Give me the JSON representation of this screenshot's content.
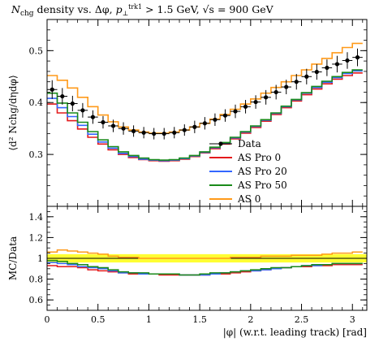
{
  "title": {
    "prefix": "N",
    "prefix_sub": "chg",
    "middle": " density vs. Δφ, ",
    "p": "p",
    "p_sub": "⊥",
    "p_sup": "trk1",
    "cut": " > 1.5 GeV, ",
    "sqrt_s": "√s",
    "energy": " = 900 GeV"
  },
  "ylabel_main": "⟨d² Nchg/dηdφ⟩",
  "ylabel_ratio": "MC/Data",
  "xlabel": "|φ| (w.r.t. leading track) [rad]",
  "colors": {
    "data": "#000000",
    "as_pro_0": "#e41a1c",
    "as_pro_20": "#3366ff",
    "as_pro_50": "#1a8a1a",
    "as_0": "#ff9a1a",
    "band": "#ffff33"
  },
  "chart_data": [
    {
      "type": "line",
      "role": "main",
      "xlim": [
        0,
        3.1416
      ],
      "ylim": [
        0.2,
        0.56
      ],
      "x_ticks": [
        0,
        0.5,
        1,
        1.5,
        2,
        2.5,
        3
      ],
      "x_tick_labels": [
        "0",
        "0.5",
        "1",
        "1.5",
        "2",
        "2.5",
        "3"
      ],
      "y_ticks": [
        0.3,
        0.4,
        0.5
      ],
      "y_tick_labels": [
        "0.3",
        "0.4",
        "0.5"
      ],
      "legend_position": "center-right",
      "x": [
        0.05,
        0.15,
        0.25,
        0.35,
        0.45,
        0.55,
        0.65,
        0.75,
        0.85,
        0.95,
        1.05,
        1.15,
        1.25,
        1.35,
        1.45,
        1.55,
        1.65,
        1.75,
        1.85,
        1.95,
        2.05,
        2.15,
        2.25,
        2.35,
        2.45,
        2.55,
        2.65,
        2.75,
        2.85,
        2.95,
        3.05
      ],
      "series": [
        {
          "name": "Data",
          "key": "data",
          "style": "points",
          "values": [
            0.425,
            0.412,
            0.398,
            0.385,
            0.372,
            0.362,
            0.355,
            0.35,
            0.345,
            0.342,
            0.34,
            0.34,
            0.342,
            0.347,
            0.353,
            0.36,
            0.367,
            0.375,
            0.383,
            0.392,
            0.401,
            0.41,
            0.42,
            0.43,
            0.44,
            0.45,
            0.459,
            0.467,
            0.474,
            0.481,
            0.487
          ],
          "errors": [
            0.018,
            0.016,
            0.015,
            0.014,
            0.013,
            0.012,
            0.012,
            0.012,
            0.011,
            0.011,
            0.011,
            0.011,
            0.011,
            0.011,
            0.012,
            0.012,
            0.012,
            0.012,
            0.013,
            0.013,
            0.013,
            0.014,
            0.014,
            0.014,
            0.015,
            0.015,
            0.015,
            0.016,
            0.016,
            0.016,
            0.017
          ]
        },
        {
          "name": "AS Pro 0",
          "key": "as_pro_0",
          "style": "step",
          "values": [
            0.397,
            0.38,
            0.365,
            0.349,
            0.333,
            0.32,
            0.309,
            0.3,
            0.294,
            0.29,
            0.288,
            0.287,
            0.288,
            0.291,
            0.296,
            0.303,
            0.311,
            0.32,
            0.33,
            0.341,
            0.352,
            0.364,
            0.377,
            0.39,
            0.403,
            0.415,
            0.426,
            0.436,
            0.445,
            0.452,
            0.457
          ]
        },
        {
          "name": "AS Pro 20",
          "key": "as_pro_20",
          "style": "step",
          "values": [
            0.408,
            0.39,
            0.373,
            0.356,
            0.339,
            0.324,
            0.312,
            0.302,
            0.296,
            0.291,
            0.289,
            0.288,
            0.289,
            0.292,
            0.297,
            0.304,
            0.313,
            0.322,
            0.332,
            0.343,
            0.354,
            0.366,
            0.379,
            0.392,
            0.405,
            0.418,
            0.429,
            0.439,
            0.448,
            0.456,
            0.461
          ]
        },
        {
          "name": "AS Pro 50",
          "key": "as_pro_50",
          "style": "step",
          "values": [
            0.418,
            0.399,
            0.38,
            0.362,
            0.344,
            0.328,
            0.315,
            0.305,
            0.298,
            0.293,
            0.29,
            0.289,
            0.29,
            0.293,
            0.298,
            0.305,
            0.314,
            0.323,
            0.333,
            0.344,
            0.355,
            0.367,
            0.38,
            0.393,
            0.406,
            0.419,
            0.431,
            0.441,
            0.45,
            0.458,
            0.463
          ]
        },
        {
          "name": "AS 0",
          "key": "as_0",
          "style": "step",
          "values": [
            0.452,
            0.443,
            0.428,
            0.41,
            0.392,
            0.376,
            0.363,
            0.353,
            0.347,
            0.343,
            0.341,
            0.341,
            0.343,
            0.347,
            0.353,
            0.36,
            0.368,
            0.377,
            0.387,
            0.397,
            0.407,
            0.418,
            0.429,
            0.44,
            0.452,
            0.463,
            0.474,
            0.485,
            0.496,
            0.506,
            0.514
          ]
        }
      ]
    },
    {
      "type": "line",
      "role": "ratio",
      "xlim": [
        0,
        3.1416
      ],
      "ylim": [
        0.5,
        1.5
      ],
      "y_ticks": [
        0.6,
        0.8,
        1.0,
        1.2,
        1.4
      ],
      "y_tick_labels": [
        "0.6",
        "0.8",
        "1",
        "1.2",
        "1.4"
      ],
      "band": [
        0.96,
        1.04
      ],
      "x": [
        0.05,
        0.15,
        0.25,
        0.35,
        0.45,
        0.55,
        0.65,
        0.75,
        0.85,
        0.95,
        1.05,
        1.15,
        1.25,
        1.35,
        1.45,
        1.55,
        1.65,
        1.75,
        1.85,
        1.95,
        2.05,
        2.15,
        2.25,
        2.35,
        2.45,
        2.55,
        2.65,
        2.75,
        2.85,
        2.95,
        3.05
      ],
      "series": [
        {
          "name": "AS Pro 0",
          "key": "as_pro_0",
          "values": [
            0.93,
            0.92,
            0.92,
            0.91,
            0.89,
            0.88,
            0.87,
            0.86,
            0.85,
            0.85,
            0.85,
            0.84,
            0.84,
            0.84,
            0.84,
            0.84,
            0.85,
            0.85,
            0.86,
            0.87,
            0.88,
            0.89,
            0.9,
            0.91,
            0.92,
            0.92,
            0.93,
            0.93,
            0.94,
            0.94,
            0.94
          ]
        },
        {
          "name": "AS Pro 20",
          "key": "as_pro_20",
          "values": [
            0.96,
            0.95,
            0.94,
            0.92,
            0.91,
            0.9,
            0.88,
            0.86,
            0.86,
            0.85,
            0.85,
            0.85,
            0.85,
            0.84,
            0.84,
            0.84,
            0.85,
            0.86,
            0.87,
            0.88,
            0.88,
            0.89,
            0.9,
            0.91,
            0.92,
            0.93,
            0.93,
            0.94,
            0.95,
            0.95,
            0.95
          ]
        },
        {
          "name": "AS Pro 50",
          "key": "as_pro_50",
          "values": [
            0.98,
            0.97,
            0.95,
            0.94,
            0.92,
            0.91,
            0.89,
            0.87,
            0.86,
            0.86,
            0.85,
            0.85,
            0.85,
            0.84,
            0.84,
            0.85,
            0.86,
            0.86,
            0.87,
            0.88,
            0.89,
            0.9,
            0.91,
            0.91,
            0.92,
            0.93,
            0.94,
            0.94,
            0.95,
            0.95,
            0.95
          ]
        },
        {
          "name": "AS 0",
          "key": "as_0",
          "values": [
            1.06,
            1.08,
            1.07,
            1.06,
            1.05,
            1.04,
            1.02,
            1.01,
            1.01,
            1.0,
            1.0,
            1.0,
            1.0,
            1.0,
            1.0,
            1.0,
            1.0,
            1.0,
            1.01,
            1.01,
            1.01,
            1.02,
            1.02,
            1.02,
            1.03,
            1.03,
            1.03,
            1.04,
            1.05,
            1.05,
            1.06
          ]
        }
      ]
    }
  ]
}
